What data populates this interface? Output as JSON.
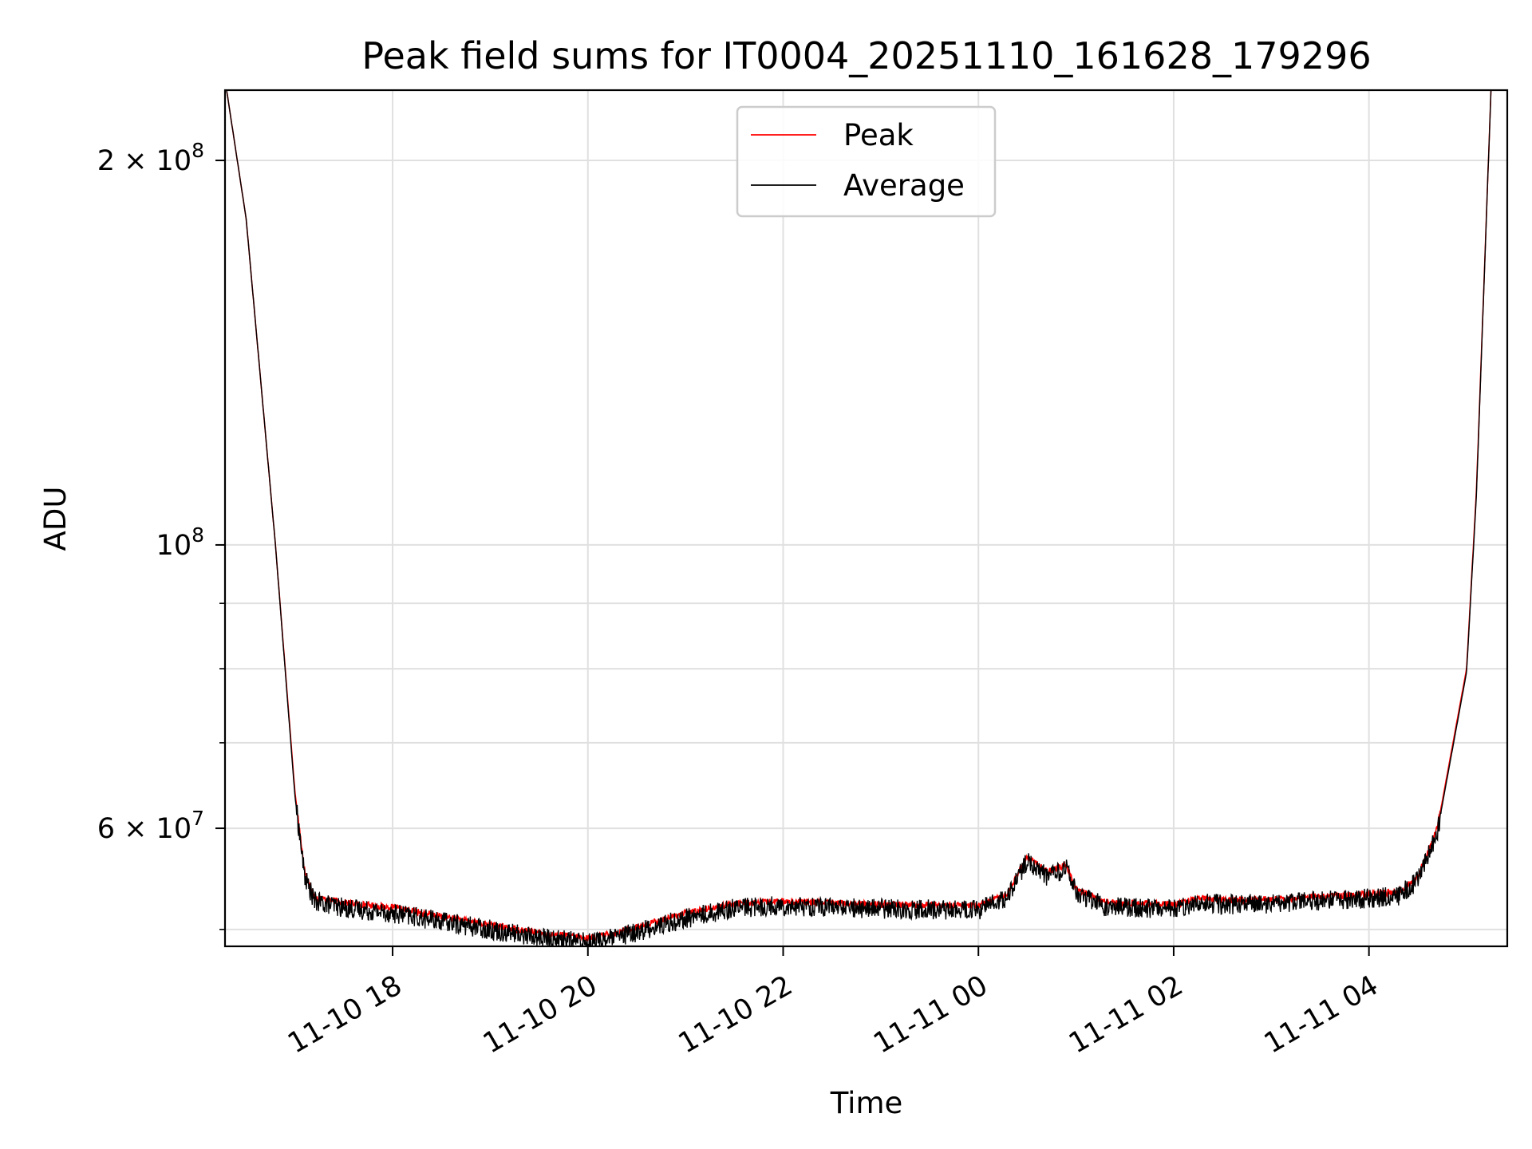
{
  "chart_data": {
    "type": "line",
    "title": "Peak field sums for IT0004_20251110_161628_179296",
    "xlabel": "Time",
    "ylabel": "ADU",
    "yscale": "log",
    "xlim": [
      "2025-11-10 16:17",
      "2025-11-11 05:25"
    ],
    "ylim": [
      48500000,
      227000000
    ],
    "grid": true,
    "legend": {
      "position": "top-center",
      "entries": [
        "Peak",
        "Average"
      ]
    },
    "x_ticks": [
      {
        "t": "2025-11-10 18:00",
        "label": "11-10 18"
      },
      {
        "t": "2025-11-10 20:00",
        "label": "11-10 20"
      },
      {
        "t": "2025-11-10 22:00",
        "label": "11-10 22"
      },
      {
        "t": "2025-11-11 00:00",
        "label": "11-11 00"
      },
      {
        "t": "2025-11-11 02:00",
        "label": "11-11 02"
      },
      {
        "t": "2025-11-11 04:00",
        "label": "11-11 04"
      }
    ],
    "y_ticks": [
      {
        "value": 200000000,
        "base": "2 × 10",
        "exp": "8"
      },
      {
        "value": 100000000,
        "base": "10",
        "exp": "8"
      },
      {
        "value": 60000000,
        "base": "6 × 10",
        "exp": "7"
      }
    ],
    "y_minor_gridlines": [
      50000000,
      70000000,
      80000000,
      90000000
    ],
    "series": [
      {
        "name": "Peak",
        "color": "#ff0000",
        "hours_from_1600": [
          0.3,
          0.5,
          0.8,
          1.0,
          1.1,
          1.2,
          1.5,
          2.0,
          3.0,
          3.5,
          4.0,
          4.3,
          5.0,
          5.5,
          6.0,
          7.0,
          8.0,
          8.3,
          8.5,
          8.7,
          8.9,
          9.0,
          9.3,
          10.0,
          10.3,
          10.5,
          11.0,
          12.0,
          12.3,
          12.5,
          12.7,
          13.0,
          13.1,
          13.25
        ],
        "values": [
          227000000,
          180000000,
          100000000,
          64000000,
          55500000,
          53000000,
          52500000,
          52000000,
          50400000,
          49700000,
          49200000,
          49700000,
          51500000,
          52400000,
          52600000,
          52300000,
          52200000,
          53400000,
          57000000,
          55500000,
          56200000,
          53800000,
          52500000,
          52300000,
          52900000,
          52700000,
          52800000,
          53300000,
          53500000,
          55000000,
          60000000,
          80000000,
          110000000,
          227000000
        ]
      },
      {
        "name": "Average",
        "color": "#000000",
        "hours_from_1600": [
          0.3,
          0.5,
          0.8,
          1.0,
          1.1,
          1.2,
          1.5,
          2.0,
          3.0,
          3.5,
          4.0,
          4.3,
          5.0,
          5.5,
          6.0,
          7.0,
          8.0,
          8.3,
          8.5,
          8.7,
          8.9,
          9.0,
          9.3,
          10.0,
          10.3,
          10.5,
          11.0,
          12.0,
          12.3,
          12.5,
          12.7,
          13.0,
          13.1,
          13.25
        ],
        "values": [
          227000000,
          180000000,
          100000000,
          63500000,
          55000000,
          52600000,
          52000000,
          51500000,
          50000000,
          49300000,
          48900000,
          49300000,
          51000000,
          52000000,
          52200000,
          51900000,
          51800000,
          53000000,
          56600000,
          55000000,
          55800000,
          53400000,
          52100000,
          51900000,
          52500000,
          52300000,
          52400000,
          52900000,
          53100000,
          54600000,
          59600000,
          79500000,
          109000000,
          227000000
        ]
      }
    ]
  }
}
